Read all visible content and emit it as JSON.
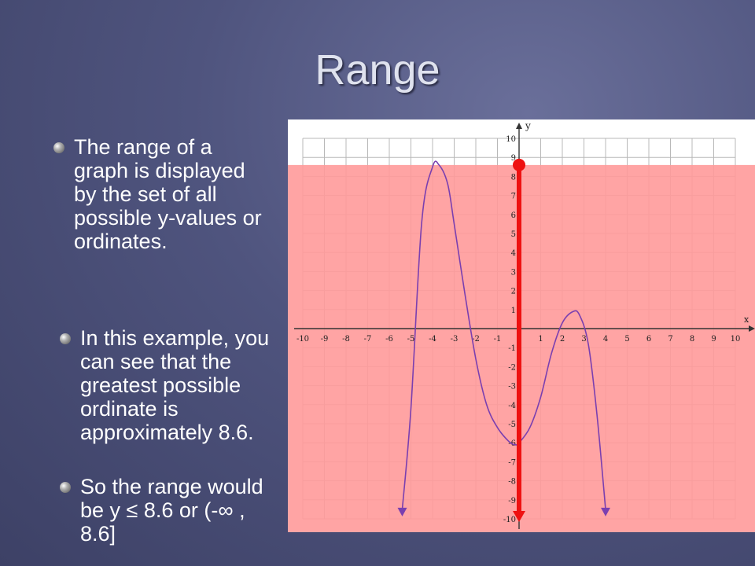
{
  "slide": {
    "title": "Range",
    "bullets": [
      "The range of a graph is displayed by the set of all possible y-values or ordinates.",
      "In this example, you can see that the greatest possible ordinate is approximately 8.6.",
      "So the range would be y ≤ 8.6 or (-∞ , 8.6]"
    ]
  },
  "colors": {
    "range_shading": "#ff9a9a",
    "range_line": "#ee1111",
    "curve": "#7a3fb0",
    "grid": "#b8b8b8",
    "background": "#4f547e"
  },
  "chart_data": {
    "type": "line",
    "xlabel": "x",
    "ylabel": "y",
    "xlim": [
      -10,
      10
    ],
    "ylim": [
      -10,
      10
    ],
    "grid": true,
    "x_ticks": [
      -10,
      -9,
      -8,
      -7,
      -6,
      -5,
      -4,
      -3,
      -2,
      -1,
      1,
      2,
      3,
      4,
      5,
      6,
      7,
      8,
      9,
      10
    ],
    "y_ticks": [
      10,
      9,
      8,
      7,
      6,
      5,
      4,
      3,
      2,
      1,
      -1,
      -2,
      -3,
      -4,
      -5,
      -6,
      -7,
      -8,
      -9,
      -10
    ],
    "series": [
      {
        "x": [
          -5.4,
          -5.0,
          -4.5,
          -4.0,
          -3.7,
          -3.3,
          -3.0,
          -2.5,
          -2.0,
          -1.5,
          -1.0,
          -0.5,
          -0.2,
          0.0,
          0.5,
          1.0,
          1.5,
          2.0,
          2.5,
          2.8,
          3.2,
          3.6,
          4.0
        ],
        "y": [
          -9.5,
          -4.2,
          5.6,
          8.5,
          8.6,
          7.6,
          5.5,
          1.8,
          -1.6,
          -4.0,
          -5.2,
          -5.9,
          -6.1,
          -6.0,
          -5.2,
          -3.6,
          -1.3,
          0.3,
          0.9,
          0.7,
          -0.8,
          -4.5,
          -9.5
        ],
        "arrow_ends": [
          "down",
          "down"
        ]
      }
    ],
    "range_highlight": {
      "x": 0,
      "y_from": -10,
      "y_to": 8.6,
      "max_label": "8.6"
    }
  }
}
